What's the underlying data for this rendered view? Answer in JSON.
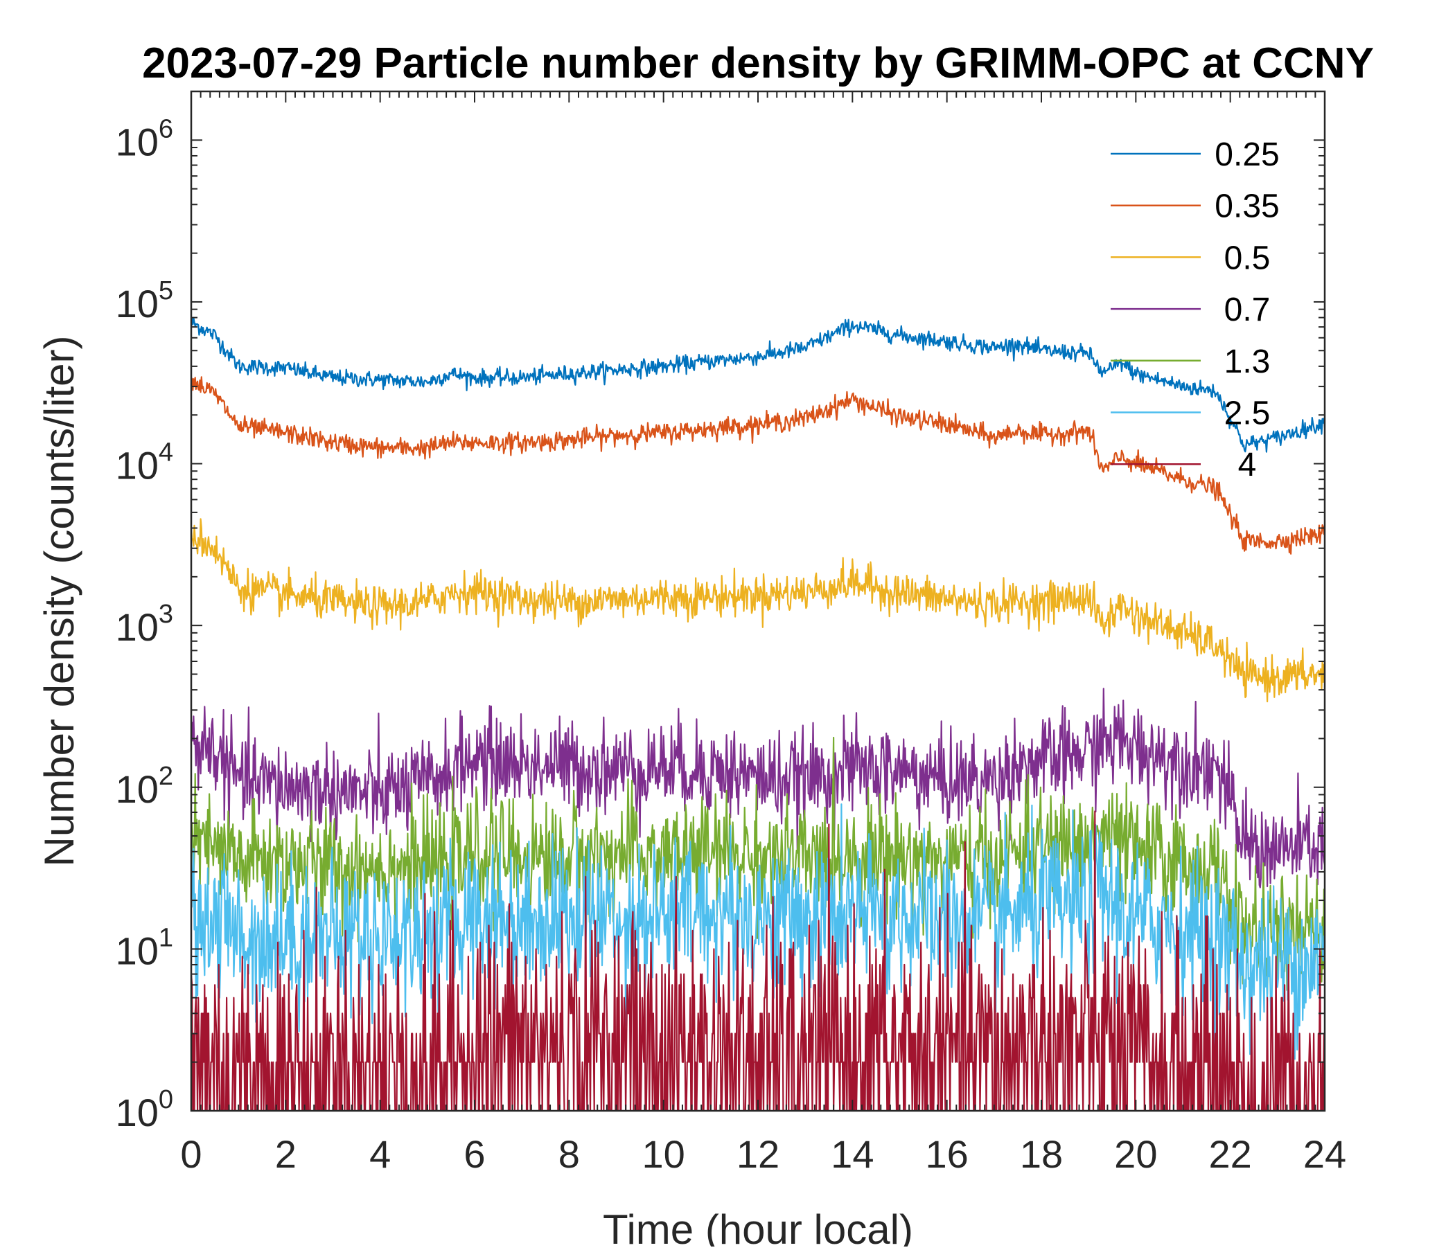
{
  "chart_data": {
    "type": "line",
    "title": "2023-07-29 Particle number density by GRIMM-OPC at CCNY",
    "xlabel": "Time (hour local)",
    "ylabel": "Number density (counts/liter)",
    "xlim": [
      0,
      24
    ],
    "ylim": [
      1,
      2000000
    ],
    "yscale": "log",
    "grid": false,
    "legend_location": "top-right",
    "x_ticks": [
      0,
      2,
      4,
      6,
      8,
      10,
      12,
      14,
      16,
      18,
      20,
      22,
      24
    ],
    "x_tick_labels": [
      "0",
      "2",
      "4",
      "6",
      "8",
      "10",
      "12",
      "14",
      "16",
      "18",
      "20",
      "22",
      "24"
    ],
    "y_ticks": [
      {
        "value": 1,
        "base": "10",
        "exp": "0"
      },
      {
        "value": 10,
        "base": "10",
        "exp": "1"
      },
      {
        "value": 100,
        "base": "10",
        "exp": "2"
      },
      {
        "value": 1000,
        "base": "10",
        "exp": "3"
      },
      {
        "value": 10000,
        "base": "10",
        "exp": "4"
      },
      {
        "value": 100000,
        "base": "10",
        "exp": "5"
      },
      {
        "value": 1000000,
        "base": "10",
        "exp": "6"
      }
    ],
    "x": [
      0,
      0.5,
      1,
      2,
      3,
      4,
      5,
      5.5,
      6,
      7,
      8,
      9,
      10,
      11,
      12,
      13,
      14,
      15,
      16,
      17,
      17.5,
      18,
      19,
      19.3,
      19.7,
      20,
      21,
      21.7,
      22.3,
      23,
      24
    ],
    "series": [
      {
        "name": "0.25",
        "color": "#0072BD",
        "noise": 0.025,
        "values": [
          75000,
          62000,
          40000,
          39000,
          34000,
          33000,
          32000,
          36000,
          34000,
          34000,
          36000,
          38000,
          40000,
          43000,
          46000,
          52000,
          72000,
          62000,
          57000,
          52000,
          55000,
          50000,
          48000,
          36000,
          42000,
          36000,
          30000,
          28000,
          13000,
          14500,
          18000
        ]
      },
      {
        "name": "0.35",
        "color": "#D95319",
        "noise": 0.03,
        "values": [
          33000,
          27000,
          17000,
          15500,
          13500,
          12500,
          12500,
          13500,
          13500,
          13500,
          14000,
          15000,
          15500,
          16500,
          17500,
          19000,
          25000,
          19500,
          17500,
          14500,
          16000,
          15000,
          16000,
          9000,
          11000,
          10000,
          8000,
          7000,
          3300,
          3300,
          3700
        ]
      },
      {
        "name": "0.5",
        "color": "#EDB120",
        "noise": 0.06,
        "values": [
          3700,
          3000,
          1700,
          1550,
          1400,
          1300,
          1400,
          1600,
          1650,
          1450,
          1400,
          1450,
          1500,
          1500,
          1550,
          1600,
          1850,
          1600,
          1450,
          1350,
          1400,
          1400,
          1500,
          1000,
          1350,
          1150,
          900,
          750,
          480,
          480,
          500
        ]
      },
      {
        "name": "0.7",
        "color": "#7E2F8E",
        "noise": 0.14,
        "values": [
          190,
          170,
          110,
          100,
          95,
          90,
          105,
          130,
          150,
          140,
          135,
          130,
          135,
          130,
          115,
          110,
          130,
          125,
          110,
          110,
          140,
          140,
          165,
          190,
          190,
          175,
          145,
          135,
          45,
          40,
          45
        ]
      },
      {
        "name": "1.3",
        "color": "#77AC30",
        "noise": 0.17,
        "values": [
          45,
          40,
          35,
          35,
          32,
          33,
          33,
          33,
          40,
          37,
          38,
          38,
          38,
          40,
          38,
          35,
          40,
          37,
          35,
          35,
          40,
          42,
          43,
          52,
          45,
          40,
          35,
          30,
          13,
          12,
          12
        ]
      },
      {
        "name": "2.5",
        "color": "#4DBEEE",
        "noise": 0.23,
        "values": [
          17,
          15,
          12,
          12,
          12,
          12,
          13,
          13,
          17,
          15,
          16,
          16,
          16,
          17,
          16,
          15,
          16,
          16,
          15,
          14,
          17,
          18,
          18,
          22,
          17,
          15,
          14,
          12,
          8,
          8,
          9
        ]
      },
      {
        "name": "4",
        "color": "#A2142F",
        "noise": 0.4,
        "values": [
          2.3,
          2.2,
          1.8,
          1.8,
          1.8,
          1.8,
          1.8,
          2.0,
          2.5,
          2.5,
          2.5,
          2.5,
          2.3,
          2.3,
          2.1,
          2.1,
          2.3,
          2.3,
          2.2,
          2.2,
          2.5,
          2.6,
          2.6,
          2.6,
          2.2,
          2.0,
          1.8,
          1.7,
          1.3,
          1.2,
          1.3
        ]
      }
    ]
  }
}
